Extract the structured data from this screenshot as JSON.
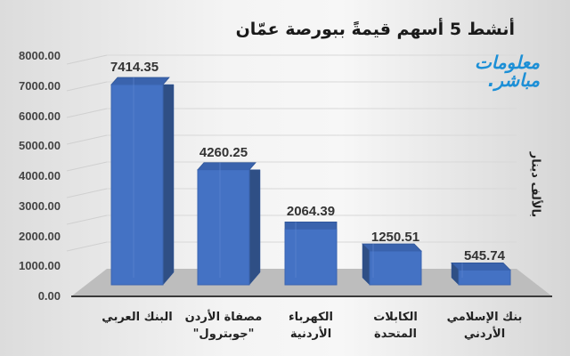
{
  "chart_data": {
    "type": "bar",
    "style": "3d-column",
    "title": "أنشط 5 أسهم قيمةً ببورصة عمّان",
    "xlabel": "",
    "ylabel": "بالألف دينار",
    "ylim": [
      0,
      8000
    ],
    "yticks": [
      "0.00",
      "1000.00",
      "2000.00",
      "3000.00",
      "4000.00",
      "5000.00",
      "6000.00",
      "7000.00",
      "8000.00"
    ],
    "grid": true,
    "legend": "none",
    "categories": [
      "البنك العربي",
      "مصفاة الأردن \"جوبترول\"",
      "الكهرباء الأردنية",
      "الكابلات المتحدة",
      "بنك الإسلامي الأردني"
    ],
    "category_lines": [
      [
        "البنك العربي"
      ],
      [
        "مصفاة الأردن",
        "\"جوبترول\""
      ],
      [
        "الكهرباء",
        "الأردنية"
      ],
      [
        "الكابلات",
        "المتحدة"
      ],
      [
        "بنك الإسلامي",
        "الأردني"
      ]
    ],
    "values": [
      7414.35,
      4260.25,
      2064.39,
      1250.51,
      545.74
    ],
    "value_labels": [
      "7414.35",
      "4260.25",
      "2064.39",
      "1250.51",
      "545.74"
    ],
    "bar_color": "#4472c4"
  },
  "logo": {
    "line1": "معلومات",
    "line2": "مباشر."
  }
}
